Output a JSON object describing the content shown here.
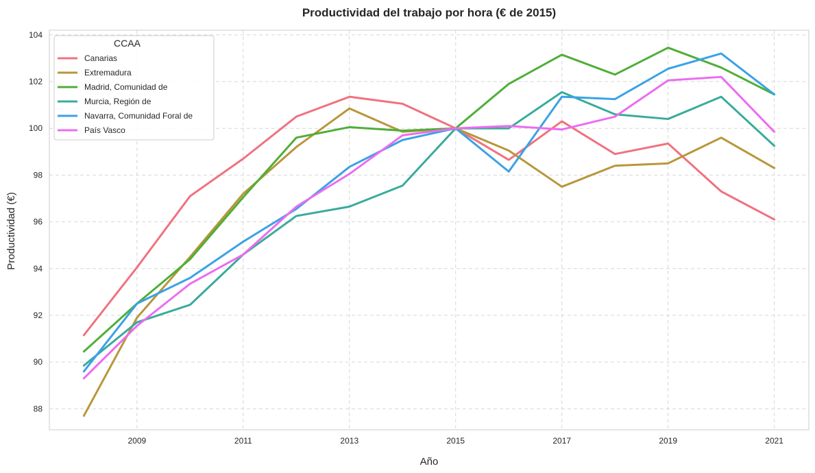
{
  "chart_data": {
    "type": "line",
    "title": "Productividad del trabajo por hora (€ de 2015)",
    "xlabel": "Año",
    "ylabel": "Productividad (€)",
    "x": [
      2008,
      2009,
      2010,
      2011,
      2012,
      2013,
      2014,
      2015,
      2016,
      2017,
      2018,
      2019,
      2020,
      2021
    ],
    "xticks": [
      2009,
      2011,
      2013,
      2015,
      2017,
      2019,
      2021
    ],
    "yticks": [
      88,
      90,
      92,
      94,
      96,
      98,
      100,
      102,
      104
    ],
    "xlim": [
      2007.35,
      2021.65
    ],
    "ylim": [
      87.1,
      104.2
    ],
    "grid": true,
    "grid_style": "dashed",
    "legend_title": "CCAA",
    "legend_position": "top-left",
    "series": [
      {
        "name": "Canarias",
        "color": "#f0717f",
        "values": [
          91.15,
          94.05,
          97.1,
          98.7,
          100.5,
          101.35,
          101.05,
          100.0,
          98.65,
          100.3,
          98.9,
          99.35,
          97.3,
          96.1
        ]
      },
      {
        "name": "Extremadura",
        "color": "#b8963a",
        "values": [
          87.7,
          91.9,
          94.5,
          97.2,
          99.2,
          100.85,
          99.85,
          100.0,
          99.05,
          97.5,
          98.4,
          98.5,
          99.6,
          98.3
        ]
      },
      {
        "name": "Madrid, Comunidad de",
        "color": "#4fae37",
        "values": [
          90.45,
          92.5,
          94.4,
          97.05,
          99.6,
          100.05,
          99.9,
          100.0,
          101.9,
          103.15,
          102.3,
          103.45,
          102.6,
          101.45
        ]
      },
      {
        "name": "Murcia, Región de",
        "color": "#39ab9b",
        "values": [
          89.85,
          91.7,
          92.45,
          94.6,
          96.25,
          96.65,
          97.55,
          100.0,
          100.0,
          101.55,
          100.6,
          100.4,
          101.35,
          99.25
        ]
      },
      {
        "name": "Navarra, Comunidad Foral de",
        "color": "#3aa2e6",
        "values": [
          89.6,
          92.5,
          93.6,
          95.15,
          96.55,
          98.35,
          99.5,
          100.0,
          98.15,
          101.35,
          101.25,
          102.55,
          103.2,
          101.45
        ]
      },
      {
        "name": "País Vasco",
        "color": "#ec6cf0",
        "values": [
          89.3,
          91.55,
          93.35,
          94.6,
          96.65,
          98.05,
          99.7,
          100.0,
          100.1,
          99.95,
          100.5,
          102.05,
          102.2,
          99.85
        ]
      }
    ]
  }
}
